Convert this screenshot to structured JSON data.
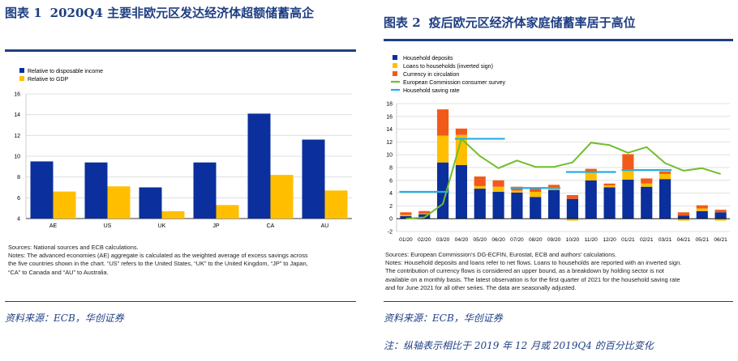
{
  "figure1": {
    "title_num": "图表 1",
    "title_text": "2020Q4 主要非欧元区发达经济体超额储蓄高企",
    "notes": [
      "Sources: National sources and ECB calculations.",
      "Notes: The advanced economies (AE) aggregate is calculated as the weighted average of excess savings across",
      "the five countries shown in the chart. “US” refers to the United States, “UK” to the United Kingdom, “JP” to Japan,",
      "“CA” to Canada and “AU” to Australia."
    ],
    "source": "资料来源：ECB，华创证券"
  },
  "figure2": {
    "title_num": "图表 2",
    "title_text": "疫后欧元区经济体家庭储蓄率居于高位",
    "notes": [
      "Sources: European Commission’s DG-ECFIN, Eurostat, ECB and authors’ calculations.",
      "Notes: Household deposits and loans refer to net flows. Loans to households are reported with an inverted sign.",
      "The contribution of currency flows is considered an upper bound, as a breakdown by holding sector is not",
      "available on a monthly basis. The latest observation is for the first quarter of 2021 for the household saving rate",
      "and for June 2021 for all other series. The data are seasonally adjusted."
    ],
    "source": "资料来源：ECB，华创证券",
    "footnote": "注：纵轴表示相比于 2019 年 12 月或 2019Q4 的百分比变化"
  },
  "colors": {
    "title": "#1f3f83",
    "navy": "#0b2f9c",
    "yellow": "#ffbf00",
    "orange": "#f4861f",
    "red_orange": "#f25a1a",
    "green": "#6ebf2b",
    "sky": "#27aee0"
  },
  "chart_data": [
    {
      "type": "bar",
      "categories": [
        "AE",
        "US",
        "UK",
        "JP",
        "CA",
        "AU"
      ],
      "series": [
        {
          "name": "Relative to disposable income",
          "color": "#0b2f9c",
          "values": [
            9.5,
            9.4,
            7.0,
            9.4,
            14.1,
            11.6
          ]
        },
        {
          "name": "Relative to GDP",
          "color": "#ffbf00",
          "values": [
            6.6,
            7.1,
            4.7,
            5.3,
            8.2,
            6.7
          ]
        }
      ],
      "ylim": [
        4,
        16
      ],
      "yticks": [
        4,
        6,
        8,
        10,
        12,
        14,
        16
      ],
      "grid": true,
      "legend": "top-left"
    },
    {
      "type": "bar",
      "stacked": true,
      "categories": [
        "01/20",
        "02/20",
        "03/20",
        "04/20",
        "05/20",
        "06/20",
        "07/20",
        "08/20",
        "09/20",
        "10/20",
        "11/20",
        "12/20",
        "01/21",
        "02/21",
        "03/21",
        "04/21",
        "05/21",
        "06/21"
      ],
      "series": [
        {
          "name": "Household deposits",
          "kind": "bar",
          "color": "#0b2f9c",
          "values": [
            0.4,
            0.7,
            8.8,
            8.4,
            4.7,
            4.2,
            4.1,
            3.4,
            4.5,
            3.1,
            6.0,
            4.9,
            6.1,
            5.0,
            6.2,
            0.5,
            1.2,
            1.0
          ]
        },
        {
          "name": "Loans to households (inverted sign)",
          "kind": "bar",
          "color": "#ffbf00",
          "values": [
            0.2,
            0.1,
            4.2,
            4.7,
            0.4,
            0.8,
            0.3,
            0.8,
            0.4,
            -0.3,
            1.2,
            0.3,
            1.5,
            0.5,
            0.8,
            -0.3,
            0.4,
            -0.3
          ]
        },
        {
          "name": "Currency in circulation",
          "kind": "bar",
          "color": "#f25a1a",
          "values": [
            0.4,
            0.4,
            4.1,
            1.0,
            1.5,
            1.0,
            0.6,
            0.6,
            0.4,
            0.6,
            0.6,
            0.3,
            2.5,
            0.8,
            0.4,
            0.5,
            0.5,
            0.4
          ]
        },
        {
          "name": "European Commission consumer survey",
          "kind": "line",
          "color": "#6ebf2b",
          "values": [
            0,
            0.2,
            2.3,
            12.5,
            9.8,
            7.9,
            9.1,
            8.1,
            8.1,
            8.8,
            11.9,
            11.5,
            10.3,
            11.2,
            8.7,
            7.5,
            7.9,
            7.0
          ]
        },
        {
          "name": "Household saving rate",
          "kind": "step",
          "color": "#27aee0",
          "quarters": [
            {
              "from": "01/20",
              "to": "03/20",
              "value": 4.2
            },
            {
              "from": "04/20",
              "to": "06/20",
              "value": 12.5
            },
            {
              "from": "07/20",
              "to": "09/20",
              "value": 4.8
            },
            {
              "from": "10/20",
              "to": "12/20",
              "value": 7.3
            },
            {
              "from": "01/21",
              "to": "03/21",
              "value": 7.6
            }
          ]
        }
      ],
      "ylim": [
        -2,
        18
      ],
      "yticks": [
        -2,
        0,
        2,
        4,
        6,
        8,
        10,
        12,
        14,
        16,
        18
      ],
      "grid": true,
      "legend": "top-left"
    }
  ]
}
